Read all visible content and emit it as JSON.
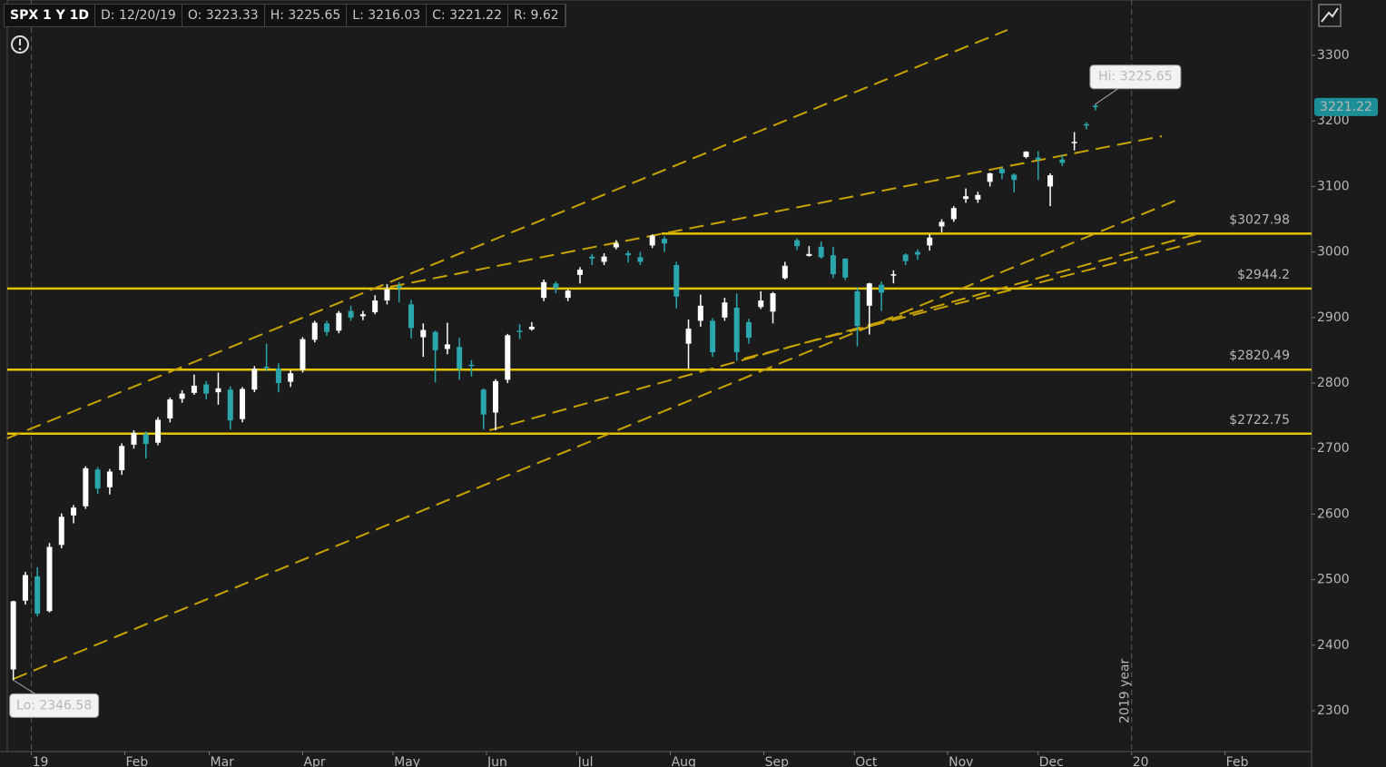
{
  "chart_data": {
    "type": "candlestick",
    "title": "SPX 1 Y 1D",
    "header_fields": [
      "D: 12/20/19",
      "O: 3223.33",
      "H: 3225.65",
      "L: 3216.03",
      "C: 3221.22",
      "R: 9.62"
    ],
    "x": [
      -6,
      -2,
      2,
      6,
      10,
      14,
      18,
      22,
      26,
      30,
      34,
      38,
      42,
      46,
      50,
      54,
      58,
      62,
      66,
      70,
      74,
      78,
      82,
      86,
      90,
      94,
      98,
      102,
      106,
      110,
      114,
      118,
      122,
      126,
      130,
      134,
      138,
      142,
      146,
      150,
      154,
      158,
      162,
      166,
      170,
      174,
      178,
      182,
      186,
      190,
      194,
      198,
      202,
      206,
      210,
      214,
      218,
      222,
      226,
      230,
      234,
      238,
      242,
      246,
      250,
      254,
      258,
      262,
      266,
      270,
      274,
      278,
      282,
      286,
      290,
      294,
      298,
      302,
      306,
      310,
      314,
      318,
      322,
      326,
      330,
      334,
      338,
      342,
      346,
      350,
      353
    ],
    "open": [
      2363,
      2468,
      2505,
      2452,
      2553,
      2598,
      2612,
      2668,
      2641,
      2667,
      2706,
      2722,
      2709,
      2746,
      2776,
      2785,
      2798,
      2786,
      2790,
      2745,
      2790,
      2825,
      2822,
      2802,
      2820,
      2866,
      2891,
      2880,
      2910,
      2902,
      2908,
      2926,
      2948,
      2920,
      2870,
      2878,
      2852,
      2855,
      2828,
      2790,
      2755,
      2805,
      2880,
      2882,
      2930,
      2952,
      2930,
      2965,
      2993,
      2985,
      3007,
      2998,
      2992,
      3010,
      3020,
      2980,
      2860,
      2895,
      2895,
      2900,
      2915,
      2893,
      2916,
      2909,
      2960,
      3018,
      2994,
      3008,
      2995,
      2990,
      2940,
      2918,
      2950,
      2965,
      2996,
      3000,
      3010,
      3039,
      3050,
      3081,
      3080,
      3107,
      3127,
      3118,
      3145,
      3144,
      3100,
      3141,
      3166,
      3195,
      3223.33
    ],
    "high": [
      2468,
      2512,
      2519,
      2556,
      2601,
      2614,
      2673,
      2672,
      2669,
      2708,
      2728,
      2726,
      2748,
      2778,
      2789,
      2813,
      2803,
      2816,
      2795,
      2794,
      2826,
      2860,
      2830,
      2820,
      2870,
      2895,
      2895,
      2910,
      2918,
      2910,
      2934,
      2951,
      2954,
      2927,
      2891,
      2880,
      2892,
      2869,
      2835,
      2792,
      2806,
      2875,
      2890,
      2893,
      2958,
      2955,
      2943,
      2977,
      2997,
      2998,
      3018,
      3002,
      3000,
      3027,
      3024,
      2985,
      2897,
      2935,
      2899,
      2930,
      2937,
      2898,
      2940,
      2939,
      2985,
      3021,
      3009,
      3016,
      3008,
      2990,
      2946,
      2953,
      2955,
      2972,
      2998,
      3004,
      3027,
      3050,
      3070,
      3097,
      3092,
      3121,
      3128,
      3120,
      3154,
      3154,
      3120,
      3148,
      3183,
      3198,
      3225.65
    ],
    "low": [
      2346.58,
      2462,
      2444,
      2450,
      2548,
      2586,
      2608,
      2631,
      2630,
      2660,
      2700,
      2685,
      2705,
      2740,
      2770,
      2782,
      2775,
      2767,
      2729,
      2740,
      2786,
      2818,
      2786,
      2794,
      2816,
      2862,
      2872,
      2876,
      2895,
      2896,
      2905,
      2920,
      2923,
      2868,
      2840,
      2801,
      2844,
      2805,
      2810,
      2729,
      2728,
      2800,
      2867,
      2880,
      2925,
      2937,
      2925,
      2952,
      2980,
      2980,
      3004,
      2984,
      2980,
      3006,
      3000,
      2914,
      2822,
      2886,
      2840,
      2895,
      2834,
      2860,
      2913,
      2891,
      2958,
      3003,
      2993,
      2990,
      2960,
      2957,
      2856,
      2874,
      2910,
      2952,
      2980,
      2988,
      3002,
      3030,
      3046,
      3075,
      3075,
      3100,
      3111,
      3091,
      3143,
      3110,
      3070,
      3131,
      3155,
      3187,
      3216.03
    ],
    "close": [
      2467,
      2507,
      2448,
      2550,
      2596,
      2610,
      2670,
      2639,
      2665,
      2704,
      2724,
      2707,
      2744,
      2775,
      2784,
      2796,
      2784,
      2792,
      2743,
      2791,
      2822,
      2824,
      2800,
      2815,
      2867,
      2892,
      2878,
      2907,
      2900,
      2905,
      2926,
      2943,
      2945,
      2884,
      2881,
      2850,
      2859,
      2822,
      2826,
      2752,
      2803,
      2873,
      2879,
      2886,
      2954,
      2945,
      2941,
      2973,
      2990,
      2993,
      3013,
      2995,
      2985,
      3025,
      3013,
      2932,
      2883,
      2918,
      2847,
      2923,
      2847,
      2869,
      2926,
      2937,
      2979,
      3009,
      2997,
      2992,
      2966,
      2961,
      2887,
      2952,
      2938,
      2966,
      2986,
      2996,
      3022,
      3046,
      3067,
      3085,
      3087,
      3120,
      3120,
      3110,
      3153,
      3141,
      3117,
      3136,
      3168,
      3193,
      3221.22
    ],
    "up_color": "#ffffff",
    "down_color": "#2ba6ad",
    "xlim": [
      -8,
      424.7
    ],
    "xticks": [
      {
        "value": 0,
        "label": "19"
      },
      {
        "value": 31,
        "label": "Feb"
      },
      {
        "value": 59,
        "label": "Mar"
      },
      {
        "value": 90,
        "label": "Apr"
      },
      {
        "value": 120,
        "label": "May"
      },
      {
        "value": 151,
        "label": "Jun"
      },
      {
        "value": 181,
        "label": "Jul"
      },
      {
        "value": 212,
        "label": "Aug"
      },
      {
        "value": 243,
        "label": "Sep"
      },
      {
        "value": 273,
        "label": "Oct"
      },
      {
        "value": 304,
        "label": "Nov"
      },
      {
        "value": 334,
        "label": "Dec"
      },
      {
        "value": 365,
        "label": "20"
      },
      {
        "value": 396,
        "label": "Feb"
      }
    ],
    "ylim": [
      2237.7,
      3384.5
    ],
    "yticks": [
      2300,
      2400,
      2500,
      2600,
      2700,
      2800,
      2900,
      3000,
      3100,
      3200,
      3300
    ],
    "year_marks": [
      0,
      365
    ],
    "year_label": "2019 year",
    "level_color": "#e6c300",
    "levels": [
      {
        "value": 3027.98,
        "label": "$3027.98",
        "x_start": 209
      },
      {
        "value": 2944.2,
        "label": "$2944.2"
      },
      {
        "value": 2820.49,
        "label": "$2820.49"
      },
      {
        "value": 2722.75,
        "label": "$2722.75"
      }
    ],
    "trend_color": "#c9a400",
    "trendlines": [
      {
        "x1": -8.1,
        "y1": 2715.5,
        "x2": 323.8,
        "y2": 3338.8
      },
      {
        "x1": 119,
        "y1": 2946.8,
        "x2": 375,
        "y2": 3176.7
      },
      {
        "x1": -6,
        "y1": 2348.5,
        "x2": 381,
        "y2": 3081.2
      },
      {
        "x1": 152,
        "y1": 2728,
        "x2": 386.4,
        "y2": 3027
      },
      {
        "x1": 236.4,
        "y1": 2837.4,
        "x2": 388.6,
        "y2": 3017.5
      }
    ],
    "hi_label": "Hi: 3225.65",
    "lo_label": "Lo: 2346.58"
  }
}
